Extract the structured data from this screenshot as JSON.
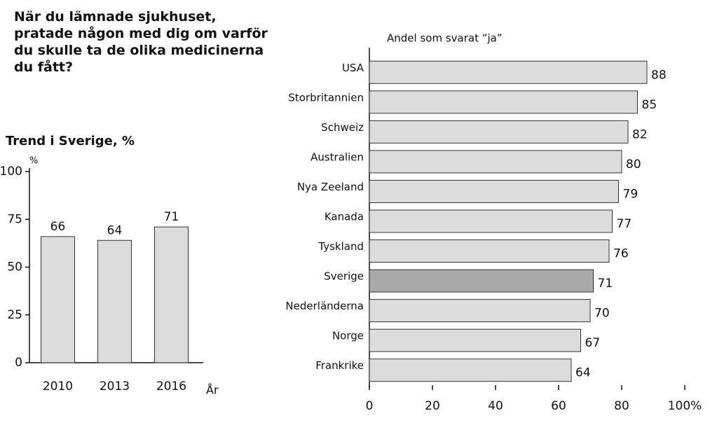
{
  "title": "När du lämnade sjukhuset, pratade någon med dig om varför du skulle ta de olika medicinerna du fått?",
  "chart_data": [
    {
      "type": "bar",
      "title": "Trend i Sverige, %",
      "y_label": "%",
      "x_label": "År",
      "categories": [
        "2010",
        "2013",
        "2016"
      ],
      "values": [
        66,
        64,
        71
      ],
      "color": "#dcdcdc",
      "ylim": [
        0,
        100
      ],
      "yticks": [
        0,
        25,
        50,
        75,
        100
      ]
    },
    {
      "type": "barh",
      "axis_label": "Andel som svarat ”ja”",
      "categories": [
        "USA",
        "Storbritannien",
        "Schweiz",
        "Australien",
        "Nya Zeeland",
        "Kanada",
        "Tyskland",
        "Sverige",
        "Nederländerna",
        "Norge",
        "Frankrike"
      ],
      "values": [
        88,
        85,
        82,
        80,
        79,
        77,
        76,
        71,
        70,
        67,
        64
      ],
      "colors": [
        "#dcdcdc",
        "#dcdcdc",
        "#dcdcdc",
        "#dcdcdc",
        "#dcdcdc",
        "#dcdcdc",
        "#dcdcdc",
        "#a9a9a9",
        "#dcdcdc",
        "#dcdcdc",
        "#dcdcdc"
      ],
      "xlim": [
        0,
        100
      ],
      "xticks": [
        0,
        20,
        40,
        60,
        80,
        {
          "value": 100,
          "label": "100%"
        }
      ]
    }
  ]
}
